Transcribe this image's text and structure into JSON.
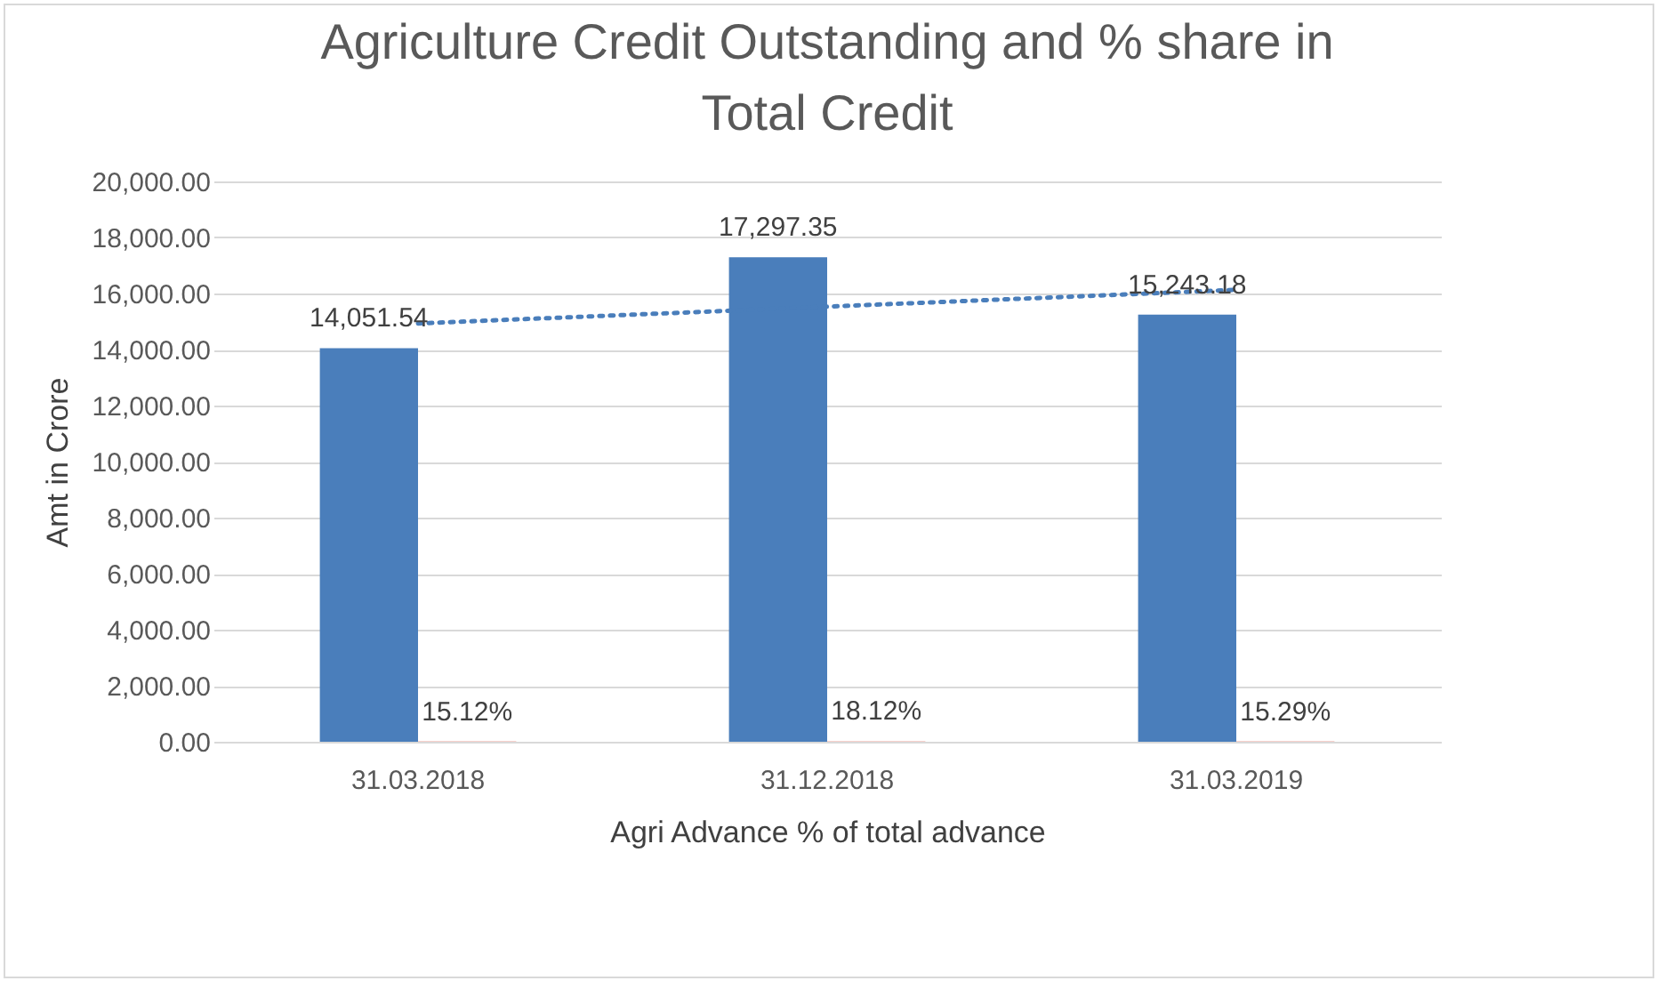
{
  "chart_data": {
    "type": "bar",
    "title": "Agriculture Credit Outstanding and % share in Total Credit",
    "xlabel": "Agri Advance % of total advance",
    "ylabel": "Amt  in Crore",
    "categories": [
      "31.03.2018",
      "31.12.2018",
      "31.03.2019"
    ],
    "series": [
      {
        "color": "#4a7ebb",
        "values": [
          14051.54,
          17297.35,
          15243.18
        ],
        "value_labels": [
          "14,051.54",
          "17,297.35",
          "15,243.18"
        ]
      },
      {
        "color": "#f0a39a",
        "values": [
          15.12,
          18.12,
          15.29
        ],
        "value_labels": [
          "15.12%",
          "18.12%",
          "15.29%"
        ]
      },
      {
        "type": "line",
        "line_style": "dotted",
        "color": "#4a7ebb",
        "x": [
          "31.03.2018",
          "31.12.2018",
          "31.03.2019"
        ],
        "values": [
          14930,
          15530,
          16130
        ]
      }
    ],
    "ylim": [
      0,
      20000
    ],
    "yticks": [
      {
        "value": 0,
        "label": "0.00"
      },
      {
        "value": 2000,
        "label": "2,000.00"
      },
      {
        "value": 4000,
        "label": "4,000.00"
      },
      {
        "value": 6000,
        "label": "6,000.00"
      },
      {
        "value": 8000,
        "label": "8,000.00"
      },
      {
        "value": 10000,
        "label": "10,000.00"
      },
      {
        "value": 12000,
        "label": "12,000.00"
      },
      {
        "value": 14000,
        "label": "14,000.00"
      },
      {
        "value": 16000,
        "label": "16,000.00"
      },
      {
        "value": 18000,
        "label": "18,000.00"
      },
      {
        "value": 20000,
        "label": "20,000.00"
      }
    ],
    "grid": "y"
  }
}
